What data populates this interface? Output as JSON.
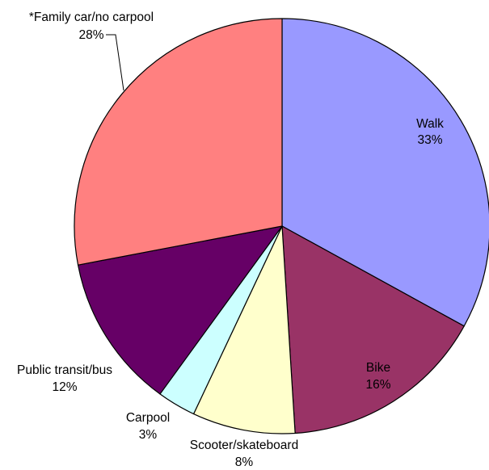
{
  "chart_data": {
    "type": "pie",
    "title": "",
    "start": "12 o'clock",
    "direction": "clockwise",
    "slices": [
      {
        "name": "Walk",
        "value": 33,
        "label": "33%",
        "color": "#9999ff"
      },
      {
        "name": "Bike",
        "value": 16,
        "label": "16%",
        "color": "#993366"
      },
      {
        "name": "Scooter/skateboard",
        "value": 8,
        "label": "8%",
        "color": "#ffffcc"
      },
      {
        "name": "Carpool",
        "value": 3,
        "label": "3%",
        "color": "#ccffff"
      },
      {
        "name": "Public transit/bus",
        "value": 12,
        "label": "12%",
        "color": "#660066"
      },
      {
        "name": "*Family car/no carpool",
        "value": 28,
        "label": "28%",
        "color": "#ff8080"
      }
    ]
  }
}
